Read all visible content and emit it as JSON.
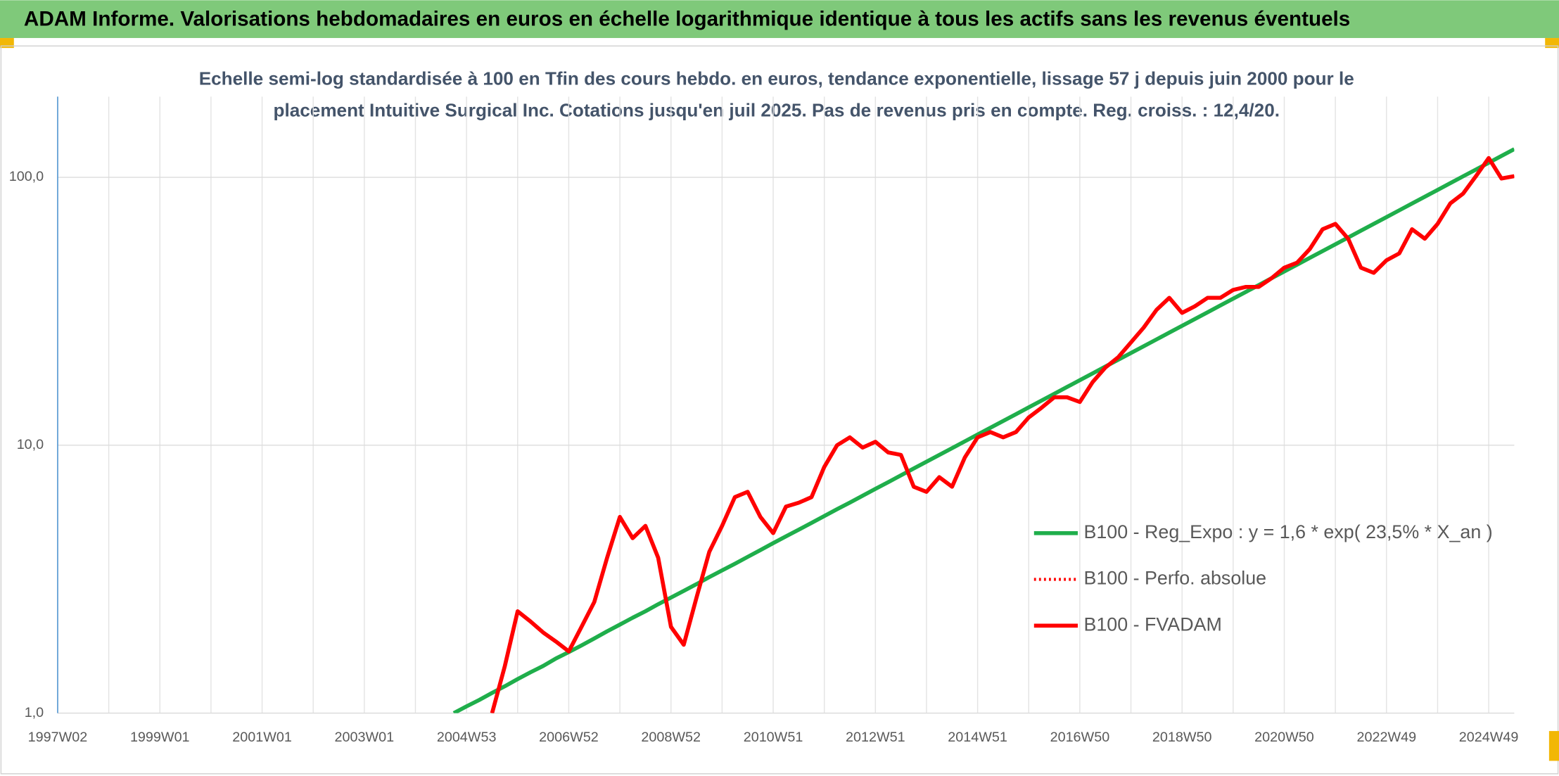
{
  "chart_data": {
    "type": "line",
    "title": "ADAM Informe. Valorisations hebdomadaires en euros en échelle logarithmique identique à tous les actifs sans les revenus éventuels",
    "subtitle": [
      "Echelle semi-log standardisée à 100 en Tfin des cours hebdo. en euros, tendance exponentielle, lissage 57 j depuis juin 2000 pour le",
      "placement Intuitive Surgical Inc. Cotations jusqu'en juil 2025. Pas de revenus pris en compte. Reg. croiss. : 12,4/20."
    ],
    "categories": [
      "1997W02",
      null,
      null,
      null,
      null,
      null,
      null,
      null,
      "1999W01",
      null,
      null,
      null,
      null,
      null,
      null,
      null,
      "2001W01",
      null,
      null,
      null,
      null,
      null,
      null,
      null,
      "2003W01",
      null,
      null,
      null,
      null,
      null,
      null,
      null,
      "2004W53",
      null,
      null,
      null,
      null,
      null,
      null,
      null,
      "2006W52",
      null,
      null,
      null,
      null,
      null,
      null,
      null,
      "2008W52",
      null,
      null,
      null,
      null,
      null,
      null,
      null,
      "2010W51",
      null,
      null,
      null,
      null,
      null,
      null,
      null,
      "2012W51",
      null,
      null,
      null,
      null,
      null,
      null,
      null,
      "2014W51",
      null,
      null,
      null,
      null,
      null,
      null,
      null,
      "2016W50",
      null,
      null,
      null,
      null,
      null,
      null,
      null,
      "2018W50",
      null,
      null,
      null,
      null,
      null,
      null,
      null,
      "2020W50",
      null,
      null,
      null,
      null,
      null,
      null,
      null,
      "2022W49",
      null,
      null,
      null,
      null,
      null,
      null,
      null,
      "2024W49",
      null,
      null
    ],
    "series": [
      {
        "name": "B100 - Reg_Expo : y = 1,6 * exp( 23,5% *  X_an )",
        "color": "#1fae4b",
        "style": "solid",
        "values": [
          null,
          null,
          null,
          null,
          null,
          null,
          null,
          null,
          null,
          null,
          null,
          null,
          null,
          null,
          null,
          null,
          null,
          null,
          null,
          null,
          null,
          null,
          null,
          null,
          null,
          null,
          null,
          null,
          null,
          null,
          null,
          1.0,
          1.06,
          1.12,
          1.19,
          1.26,
          1.34,
          1.42,
          1.5,
          1.6,
          1.69,
          1.79,
          1.9,
          2.02,
          2.14,
          2.27,
          2.4,
          2.55,
          2.7,
          2.86,
          3.03,
          3.22,
          3.41,
          3.61,
          3.83,
          4.06,
          4.31,
          4.57,
          4.84,
          5.13,
          5.44,
          5.77,
          6.11,
          6.48,
          6.87,
          7.28,
          7.72,
          8.19,
          8.68,
          9.2,
          9.75,
          10.34,
          10.96,
          11.62,
          12.32,
          13.06,
          13.85,
          14.68,
          15.56,
          16.5,
          17.49,
          18.54,
          19.66,
          20.84,
          22.09,
          23.42,
          24.83,
          26.32,
          27.91,
          29.58,
          31.36,
          33.25,
          35.25,
          37.37,
          39.61,
          42.0,
          44.52,
          47.2,
          50.04,
          53.05,
          56.24,
          59.62,
          63.21,
          67.01,
          71.04,
          75.31,
          79.84,
          84.64,
          89.73,
          95.13,
          100.9,
          106.9,
          113.3,
          120.2,
          127.4
        ]
      },
      {
        "name": "B100 - Perfo. absolue",
        "color": "#ff0000",
        "style": "dotted",
        "values": [
          null,
          null,
          null,
          null,
          null,
          null,
          null,
          null,
          null,
          null,
          null,
          null,
          null,
          null,
          null,
          null,
          null,
          null,
          null,
          null,
          null,
          null,
          null,
          null,
          null,
          null,
          null,
          null,
          null,
          null,
          null,
          null,
          null,
          null,
          1.0,
          1.5,
          2.4,
          2.2,
          2.0,
          1.85,
          1.7,
          2.1,
          2.6,
          3.8,
          5.4,
          4.5,
          5.0,
          3.8,
          2.1,
          1.8,
          2.7,
          4.0,
          5.0,
          6.4,
          6.7,
          5.4,
          4.7,
          5.9,
          6.1,
          6.4,
          8.3,
          10.0,
          10.7,
          9.8,
          10.3,
          9.4,
          9.2,
          7.0,
          6.7,
          7.6,
          7.0,
          9.0,
          10.7,
          11.2,
          10.7,
          11.2,
          12.7,
          13.8,
          15.1,
          15.1,
          14.5,
          17.2,
          19.5,
          21.3,
          24.2,
          27.5,
          32,
          35.5,
          31.2,
          33,
          35.5,
          35.5,
          38,
          39,
          39,
          42,
          46,
          48,
          54,
          64,
          67,
          59,
          46,
          44,
          49,
          52,
          64,
          59,
          67,
          80,
          87,
          101,
          118,
          99,
          101
        ]
      },
      {
        "name": "B100 - FVADAM",
        "color": "#ff0000",
        "style": "solid",
        "values": [
          null,
          null,
          null,
          null,
          null,
          null,
          null,
          null,
          null,
          null,
          null,
          null,
          null,
          null,
          null,
          null,
          null,
          null,
          null,
          null,
          null,
          null,
          null,
          null,
          null,
          null,
          null,
          null,
          null,
          null,
          null,
          null,
          null,
          null,
          1.0,
          1.5,
          2.4,
          2.2,
          2.0,
          1.85,
          1.7,
          2.1,
          2.6,
          3.8,
          5.4,
          4.5,
          5.0,
          3.8,
          2.1,
          1.8,
          2.7,
          4.0,
          5.0,
          6.4,
          6.7,
          5.4,
          4.7,
          5.9,
          6.1,
          6.4,
          8.3,
          10.0,
          10.7,
          9.8,
          10.3,
          9.4,
          9.2,
          7.0,
          6.7,
          7.6,
          7.0,
          9.0,
          10.7,
          11.2,
          10.7,
          11.2,
          12.7,
          13.8,
          15.1,
          15.1,
          14.5,
          17.2,
          19.5,
          21.3,
          24.2,
          27.5,
          32,
          35.5,
          31.2,
          33,
          35.5,
          35.5,
          38,
          39,
          39,
          42,
          46,
          48,
          54,
          64,
          67,
          59,
          46,
          44,
          49,
          52,
          64,
          59,
          67,
          80,
          87,
          101,
          118,
          99,
          101
        ]
      }
    ],
    "ylim": [
      1,
      200
    ],
    "log_scale": true,
    "yticks": [
      {
        "value": 1,
        "label": "1,0"
      },
      {
        "value": 10,
        "label": "10,0"
      },
      {
        "value": 100,
        "label": "100,0"
      }
    ],
    "grid": true,
    "legend_position": "right"
  }
}
